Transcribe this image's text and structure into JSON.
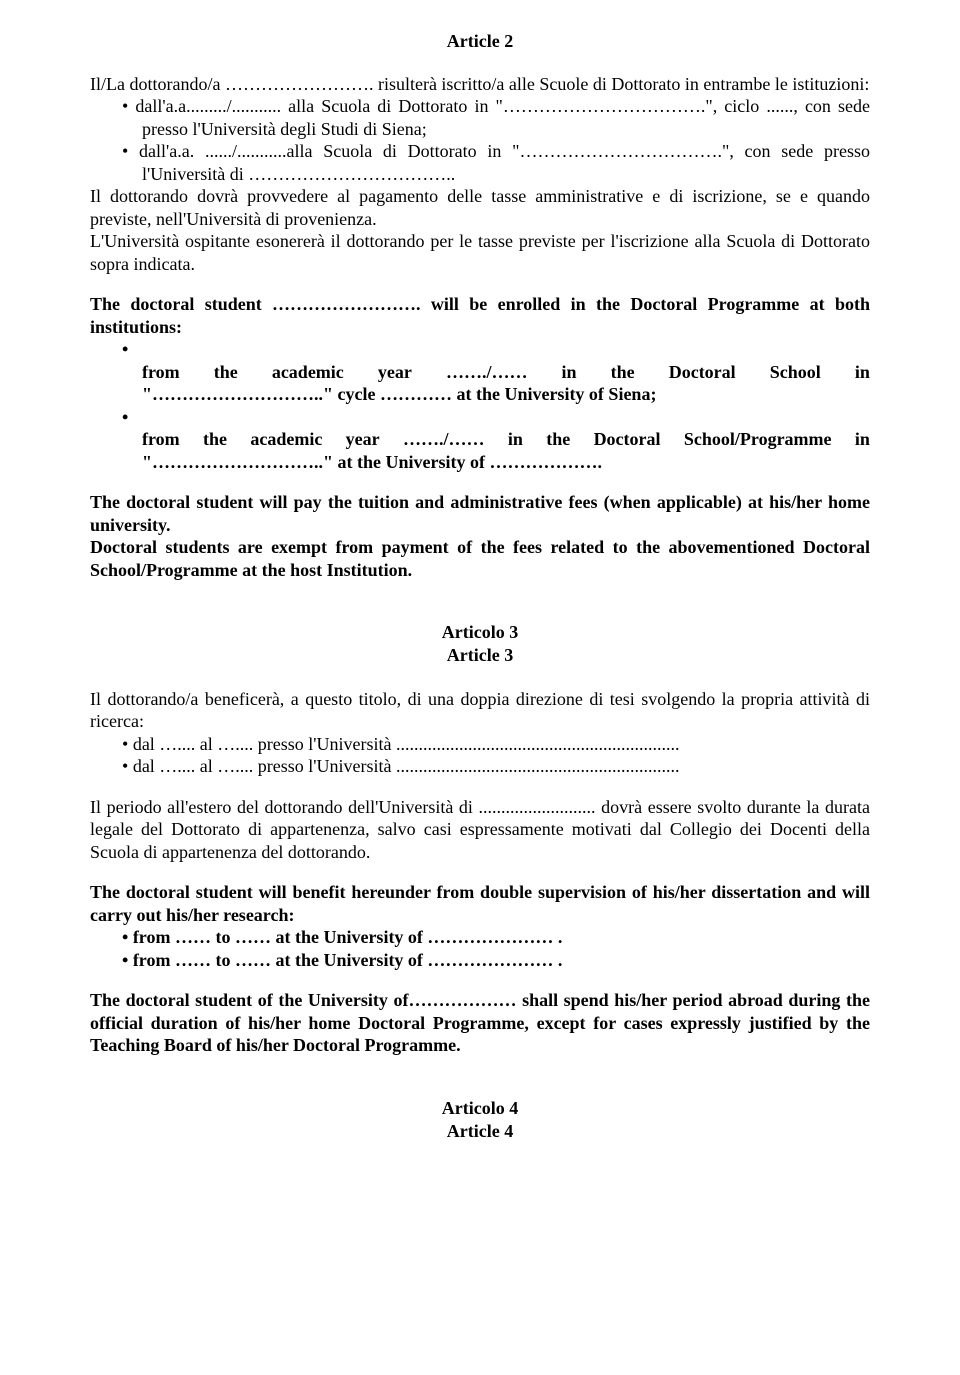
{
  "article2": {
    "title": "Article 2",
    "para1_line1": "Il/La dottorando/a ……………………. risulterà iscritto/a alle Scuole di Dottorato in entrambe le istituzioni:",
    "bullet1": "dall'a.a........./........... alla Scuola di Dottorato in \"…………………………….\", ciclo ......, con sede presso l'Università degli Studi di Siena;",
    "bullet2": "dall'a.a. ....../...........alla Scuola di Dottorato in \"…………………………….\", con sede presso l'Università di ……………………………..",
    "para2": "Il dottorando dovrà provvedere al pagamento delle tasse amministrative e di iscrizione, se e quando previste, nell'Università di provenienza.",
    "para3": "L'Università ospitante esonererà il dottorando per le tasse previste per l'iscrizione alla Scuola di Dottorato sopra indicata.",
    "en_para1": "The doctoral student ……………………. will be enrolled in the Doctoral Programme at both institutions:",
    "en_bullet1_a": "from",
    "en_bullet1_b": "the",
    "en_bullet1_c": "academic",
    "en_bullet1_d": "year",
    "en_bullet1_e": "……./……",
    "en_bullet1_f": "in",
    "en_bullet1_g": "the",
    "en_bullet1_h": "Doctoral",
    "en_bullet1_i": "School",
    "en_bullet1_j": "in",
    "en_bullet1_line2": "\"………………………..\" cycle ………… at the University of Siena;",
    "en_bullet2_a": "from",
    "en_bullet2_b": "the",
    "en_bullet2_c": "academic",
    "en_bullet2_d": "year",
    "en_bullet2_e": "……./……",
    "en_bullet2_f": "in",
    "en_bullet2_g": "the",
    "en_bullet2_h": "Doctoral",
    "en_bullet2_i": "School/Programme",
    "en_bullet2_j": "in",
    "en_bullet2_line2": "\"………………………..\" at the University of ……………….",
    "en_para2": "The doctoral student will pay the tuition and administrative fees (when applicable) at his/her home university.",
    "en_para3": "Doctoral students are exempt from payment of the fees related to the abovementioned Doctoral School/Programme at the host Institution."
  },
  "article3": {
    "title_it": "Articolo 3",
    "title_en": "Article 3",
    "para1": "Il dottorando/a beneficerà, a questo titolo, di una doppia direzione di tesi svolgendo la propria attività di ricerca:",
    "bullet1": "dal ….... al ….... presso l'Università ...............................................................",
    "bullet2": "dal ….... al ….... presso l'Università ...............................................................",
    "para2": "Il periodo all'estero del dottorando dell'Università di .......................... dovrà essere svolto durante la durata legale del Dottorato di appartenenza, salvo casi espressamente motivati dal Collegio dei Docenti della Scuola di appartenenza del dottorando.",
    "en_para1": "The doctoral student will benefit hereunder from double supervision of his/her dissertation and will carry out his/her research:",
    "en_bullet1": "from …… to …… at the University of ………………… .",
    "en_bullet2": "from …… to …… at the University of ………………… .",
    "en_para2": "The doctoral student of the University of……………… shall spend his/her period abroad during the official duration of his/her home Doctoral Programme, except for cases expressly justified by the Teaching Board of his/her Doctoral Programme."
  },
  "article4": {
    "title_it": "Articolo 4",
    "title_en": "Article 4"
  }
}
